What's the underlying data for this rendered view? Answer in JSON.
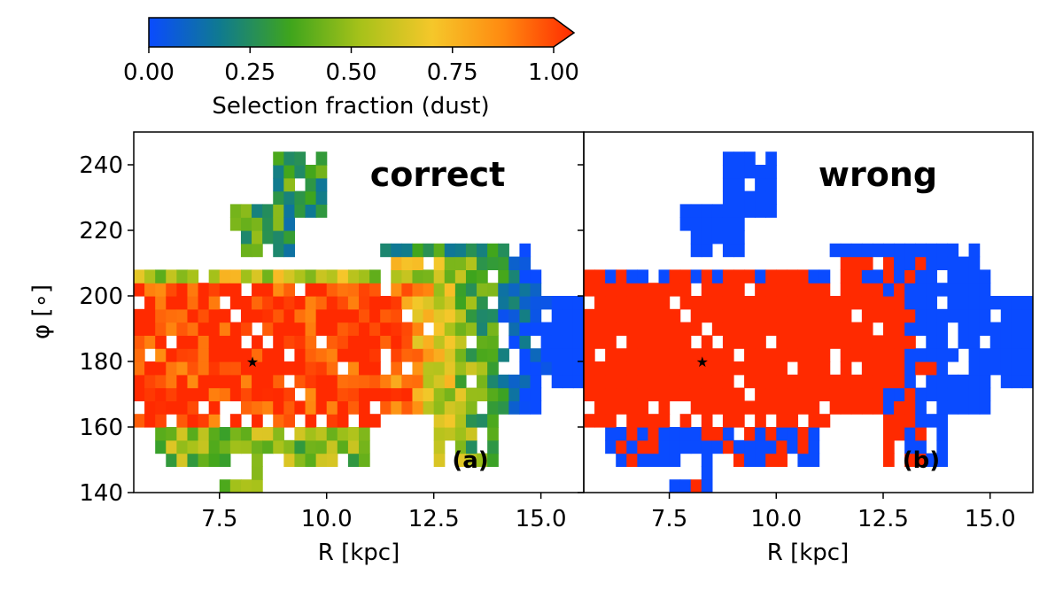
{
  "colorbar": {
    "label": "Selection fraction (dust)",
    "ticks": [
      "0.00",
      "0.25",
      "0.50",
      "0.75",
      "1.00"
    ],
    "tick_values": [
      0,
      0.25,
      0.5,
      0.75,
      1.0
    ],
    "range": [
      0,
      1
    ],
    "extend": "max",
    "colors": [
      "#0a4bff",
      "#0f7a90",
      "#3fa51c",
      "#a8c21a",
      "#f5c72a",
      "#ff8a10",
      "#ff2a00"
    ]
  },
  "axes": {
    "xlabel": "R [kpc]",
    "ylabel": "φ [∘]",
    "x_ticks": [
      "7.5",
      "10.0",
      "12.5",
      "15.0"
    ],
    "x_tick_values": [
      7.5,
      10.0,
      12.5,
      15.0
    ],
    "y_ticks": [
      "140",
      "160",
      "180",
      "200",
      "220",
      "240"
    ],
    "y_tick_values": [
      140,
      160,
      180,
      200,
      220,
      240
    ],
    "xlim": [
      5.5,
      16.0
    ],
    "ylim": [
      140,
      250
    ]
  },
  "chart_data": [
    {
      "type": "heatmap",
      "title": "correct",
      "panel_label": "(a)",
      "xlabel": "R [kpc]",
      "ylabel": "φ [∘]",
      "xlim": [
        5.5,
        16.0
      ],
      "ylim": [
        140,
        250
      ],
      "marker": {
        "R": 8.27,
        "phi": 180,
        "symbol": "star"
      }
    },
    {
      "type": "heatmap",
      "title": "wrong",
      "panel_label": "(b)",
      "xlabel": "R [kpc]",
      "xlim": [
        5.5,
        16.0
      ],
      "ylim": [
        140,
        250
      ],
      "marker": {
        "R": 8.27,
        "phi": 180,
        "symbol": "star"
      }
    }
  ]
}
